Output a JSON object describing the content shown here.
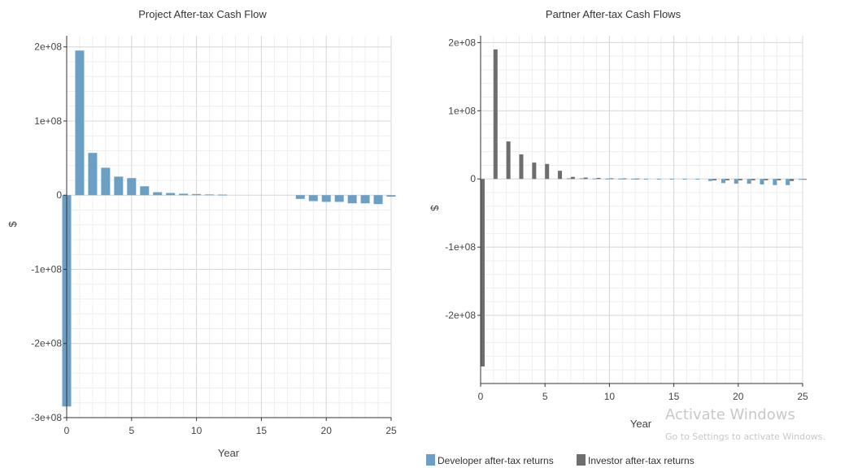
{
  "chart_data": [
    {
      "type": "bar",
      "title": "Project After-tax Cash Flow",
      "xlabel": "Year",
      "ylabel": "$",
      "xlim": [
        0,
        25
      ],
      "ylim": [
        -300000000,
        215000000
      ],
      "xticks": [
        0,
        5,
        10,
        15,
        20,
        25
      ],
      "xtick_labels": [
        "0",
        "5",
        "10",
        "15",
        "20",
        "25"
      ],
      "yticks": [
        200000000,
        100000000,
        0,
        -100000000,
        -200000000,
        -300000000
      ],
      "ytick_labels": [
        "2e+08",
        "1e+08",
        "0",
        "-1e+08",
        "-2e+08",
        "-3e+08"
      ],
      "grid": true,
      "series": [
        {
          "color": "#6b9fc4",
          "x": [
            0,
            1,
            2,
            3,
            4,
            5,
            6,
            7,
            8,
            9,
            10,
            11,
            12,
            13,
            14,
            15,
            16,
            17,
            18,
            19,
            20,
            21,
            22,
            23,
            24,
            25
          ],
          "values": [
            -285000000,
            195000000,
            57000000,
            37000000,
            25000000,
            23000000,
            12000000,
            4000000,
            3000000,
            2000000,
            1500000,
            1000000,
            800000,
            0,
            0,
            0,
            0,
            0,
            -5000000,
            -8000000,
            -9000000,
            -9000000,
            -11000000,
            -11000000,
            -12000000,
            -2000000
          ]
        }
      ]
    },
    {
      "type": "bar",
      "title": "Partner After-tax Cash Flows",
      "xlabel": "Year",
      "ylabel": "$",
      "xlim": [
        0,
        25
      ],
      "ylim": [
        -300000000,
        210000000
      ],
      "xticks": [
        0,
        5,
        10,
        15,
        20,
        25
      ],
      "xtick_labels": [
        "0",
        "5",
        "10",
        "15",
        "20",
        "25"
      ],
      "yticks": [
        200000000,
        100000000,
        0,
        -100000000,
        -200000000
      ],
      "ytick_labels": [
        "2e+08",
        "1e+08",
        "0",
        "-1e+08",
        "-2e+08"
      ],
      "grid": true,
      "legend_position": "bottom",
      "series": [
        {
          "name": "Developer after-tax returns",
          "color": "#6b9fc4",
          "x": [
            0,
            1,
            2,
            3,
            4,
            5,
            6,
            7,
            8,
            9,
            10,
            11,
            12,
            13,
            14,
            15,
            16,
            17,
            18,
            19,
            20,
            21,
            22,
            23,
            24,
            25
          ],
          "values": [
            0,
            0,
            0,
            0,
            0,
            0,
            0,
            1000000,
            1000000,
            800000,
            600000,
            500000,
            400000,
            300000,
            300000,
            300000,
            300000,
            300000,
            -3000000,
            -6000000,
            -7000000,
            -7000000,
            -8000000,
            -9000000,
            -9000000,
            -1000000
          ]
        },
        {
          "name": "Investor after-tax returns",
          "color": "#6e6e6e",
          "x": [
            0,
            1,
            2,
            3,
            4,
            5,
            6,
            7,
            8,
            9,
            10,
            11,
            12,
            13,
            14,
            15,
            16,
            17,
            18,
            19,
            20,
            21,
            22,
            23,
            24,
            25
          ],
          "values": [
            -275000000,
            190000000,
            55000000,
            36000000,
            24000000,
            22000000,
            12000000,
            3000000,
            2000000,
            1500000,
            1000000,
            800000,
            600000,
            0,
            0,
            0,
            0,
            0,
            -2000000,
            -2000000,
            -2000000,
            -2000000,
            -2000000,
            -2000000,
            -3000000,
            -1000000
          ]
        }
      ]
    }
  ],
  "watermark": {
    "title": "Activate Windows",
    "subtitle": "Go to Settings to activate Windows."
  }
}
